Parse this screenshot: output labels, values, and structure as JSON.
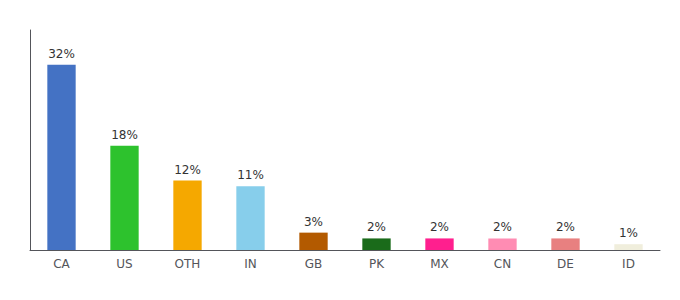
{
  "chart_data": {
    "type": "bar",
    "categories": [
      "CA",
      "US",
      "OTH",
      "IN",
      "GB",
      "PK",
      "MX",
      "CN",
      "DE",
      "ID"
    ],
    "values": [
      32,
      18,
      12,
      11,
      3,
      2,
      2,
      2,
      2,
      1
    ],
    "value_labels": [
      "32%",
      "18%",
      "12%",
      "11%",
      "3%",
      "2%",
      "2%",
      "2%",
      "2%",
      "1%"
    ],
    "colors": [
      "#4472c4",
      "#2dc22d",
      "#f5a800",
      "#87ceeb",
      "#b35a00",
      "#1a6b1a",
      "#ff1f8e",
      "#ff8cb3",
      "#e88080",
      "#f0eedc"
    ],
    "ylim": [
      0,
      38
    ],
    "grid": false,
    "data_labels": true,
    "tick_labels": "x"
  }
}
